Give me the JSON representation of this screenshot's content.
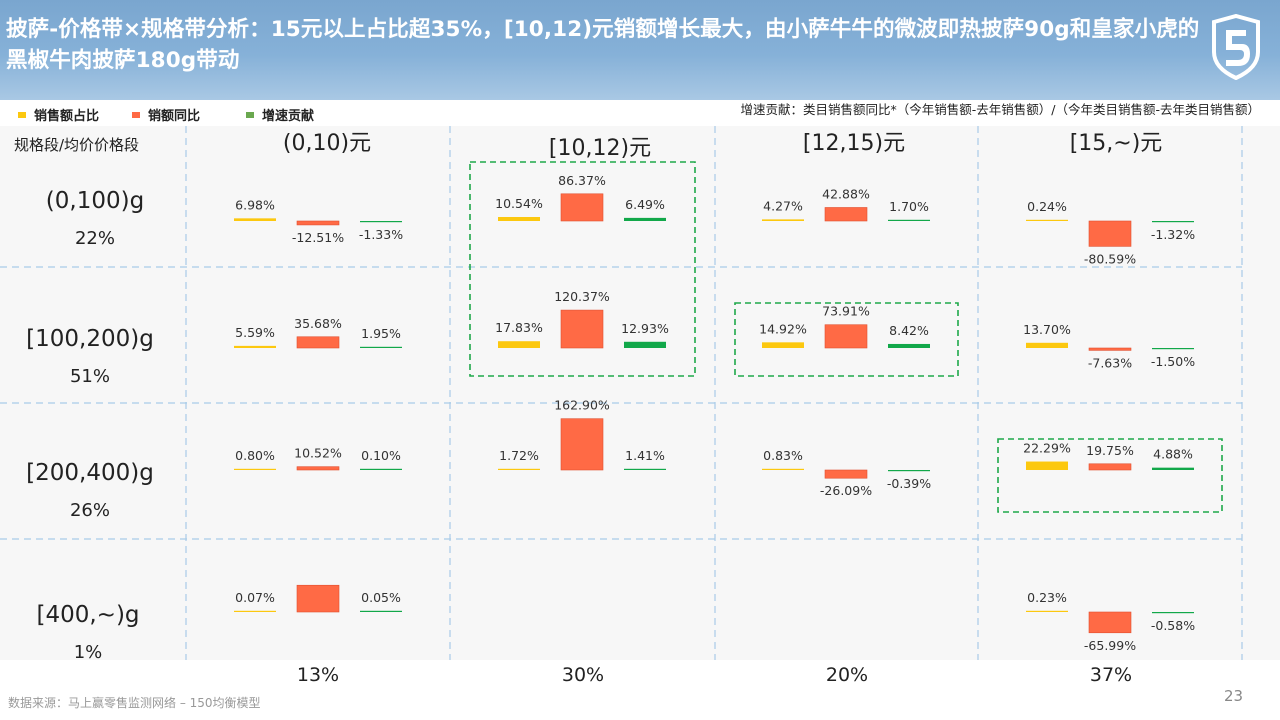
{
  "title": "披萨-价格带×规格带分析：15元以上占比超35%，[10,12)元销额增长最大，由小萨牛牛的微波即热披萨90g和皇家小虎的黑椒牛肉披萨180g带动",
  "legend": [
    {
      "label": "销售额占比",
      "color": "#fcc80f"
    },
    {
      "label": "销额同比",
      "color": "#ff6a45"
    },
    {
      "label": "增速贡献",
      "color": "#6aa84f"
    }
  ],
  "note": "增速贡献：类目销售额同比*（今年销售额-去年销售额）/（今年类目销售额-去年类目销售额）",
  "corner_label": "规格段/均价价格段",
  "columns": [
    "(0,10)元",
    "[10,12)元",
    "[12,15)元",
    "[15,~)元"
  ],
  "column_shares": [
    "13%",
    "30%",
    "20%",
    "37%"
  ],
  "rows": [
    {
      "spec": "(0,100)g",
      "share": "22%"
    },
    {
      "spec": "[100,200)g",
      "share": "51%"
    },
    {
      "spec": "[200,400)g",
      "share": "26%"
    },
    {
      "spec": "[400,~)g",
      "share": "1%"
    }
  ],
  "source": "数据来源：马上赢零售监测网络 – 150均衡模型",
  "page_number": "23",
  "colors": {
    "share": "#fcc80f",
    "yoy": "#ff6a45",
    "contrib": "#12a84a",
    "highlight": "#1ea84a",
    "grid": "#a9cbe8"
  },
  "chart_data": {
    "type": "bar",
    "metrics": [
      "销售额占比",
      "销额同比",
      "增速贡献"
    ],
    "cells": [
      {
        "row": "(0,100)g",
        "col": "(0,10)元",
        "share": 6.98,
        "yoy": -12.51,
        "contrib": -1.33,
        "labels": [
          "6.98%",
          "-12.51%",
          "-1.33%"
        ]
      },
      {
        "row": "(0,100)g",
        "col": "[10,12)元",
        "share": 10.54,
        "yoy": 86.37,
        "contrib": 6.49,
        "labels": [
          "10.54%",
          "86.37%",
          "6.49%"
        ]
      },
      {
        "row": "(0,100)g",
        "col": "[12,15)元",
        "share": 4.27,
        "yoy": 42.88,
        "contrib": 1.7,
        "labels": [
          "4.27%",
          "42.88%",
          "1.70%"
        ]
      },
      {
        "row": "(0,100)g",
        "col": "[15,~)元",
        "share": 0.24,
        "yoy": -80.59,
        "contrib": -1.32,
        "labels": [
          "0.24%",
          "-80.59%",
          "-1.32%"
        ]
      },
      {
        "row": "[100,200)g",
        "col": "(0,10)元",
        "share": 5.59,
        "yoy": 35.68,
        "contrib": 1.95,
        "labels": [
          "5.59%",
          "35.68%",
          "1.95%"
        ]
      },
      {
        "row": "[100,200)g",
        "col": "[10,12)元",
        "share": 17.83,
        "yoy": 120.37,
        "contrib": 12.93,
        "labels": [
          "17.83%",
          "120.37%",
          "12.93%"
        ]
      },
      {
        "row": "[100,200)g",
        "col": "[12,15)元",
        "share": 14.92,
        "yoy": 73.91,
        "contrib": 8.42,
        "labels": [
          "14.92%",
          "73.91%",
          "8.42%"
        ]
      },
      {
        "row": "[100,200)g",
        "col": "[15,~)元",
        "share": 13.7,
        "yoy": -7.63,
        "contrib": -1.5,
        "labels": [
          "13.70%",
          "-7.63%",
          "-1.50%"
        ]
      },
      {
        "row": "[200,400)g",
        "col": "(0,10)元",
        "share": 0.8,
        "yoy": 10.52,
        "contrib": 0.1,
        "labels": [
          "0.80%",
          "10.52%",
          "0.10%"
        ]
      },
      {
        "row": "[200,400)g",
        "col": "[10,12)元",
        "share": 1.72,
        "yoy": 162.9,
        "contrib": 1.41,
        "labels": [
          "1.72%",
          "162.90%",
          "1.41%"
        ]
      },
      {
        "row": "[200,400)g",
        "col": "[12,15)元",
        "share": 0.83,
        "yoy": -26.09,
        "contrib": -0.39,
        "labels": [
          "0.83%",
          "-26.09%",
          "-0.39%"
        ]
      },
      {
        "row": "[200,400)g",
        "col": "[15,~)元",
        "share": 22.29,
        "yoy": 19.75,
        "contrib": 4.88,
        "labels": [
          "22.29%",
          "19.75%",
          "4.88%"
        ]
      },
      {
        "row": "[400,~)g",
        "col": "(0,10)元",
        "share": 0.07,
        "yoy": 85.0,
        "contrib": 0.05,
        "labels": [
          "0.07%",
          "",
          "0.05%"
        ]
      },
      {
        "row": "[400,~)g",
        "col": "[15,~)元",
        "share": 0.23,
        "yoy": -65.99,
        "contrib": -0.58,
        "labels": [
          "0.23%",
          "-65.99%",
          "-0.58%"
        ]
      }
    ],
    "highlighted": [
      {
        "rows": [
          "(0,100)g",
          "[100,200)g"
        ],
        "col": "[10,12)元"
      },
      {
        "rows": [
          "[100,200)g"
        ],
        "col": "[12,15)元"
      },
      {
        "rows": [
          "[200,400)g"
        ],
        "col": "[15,~)元"
      }
    ]
  }
}
